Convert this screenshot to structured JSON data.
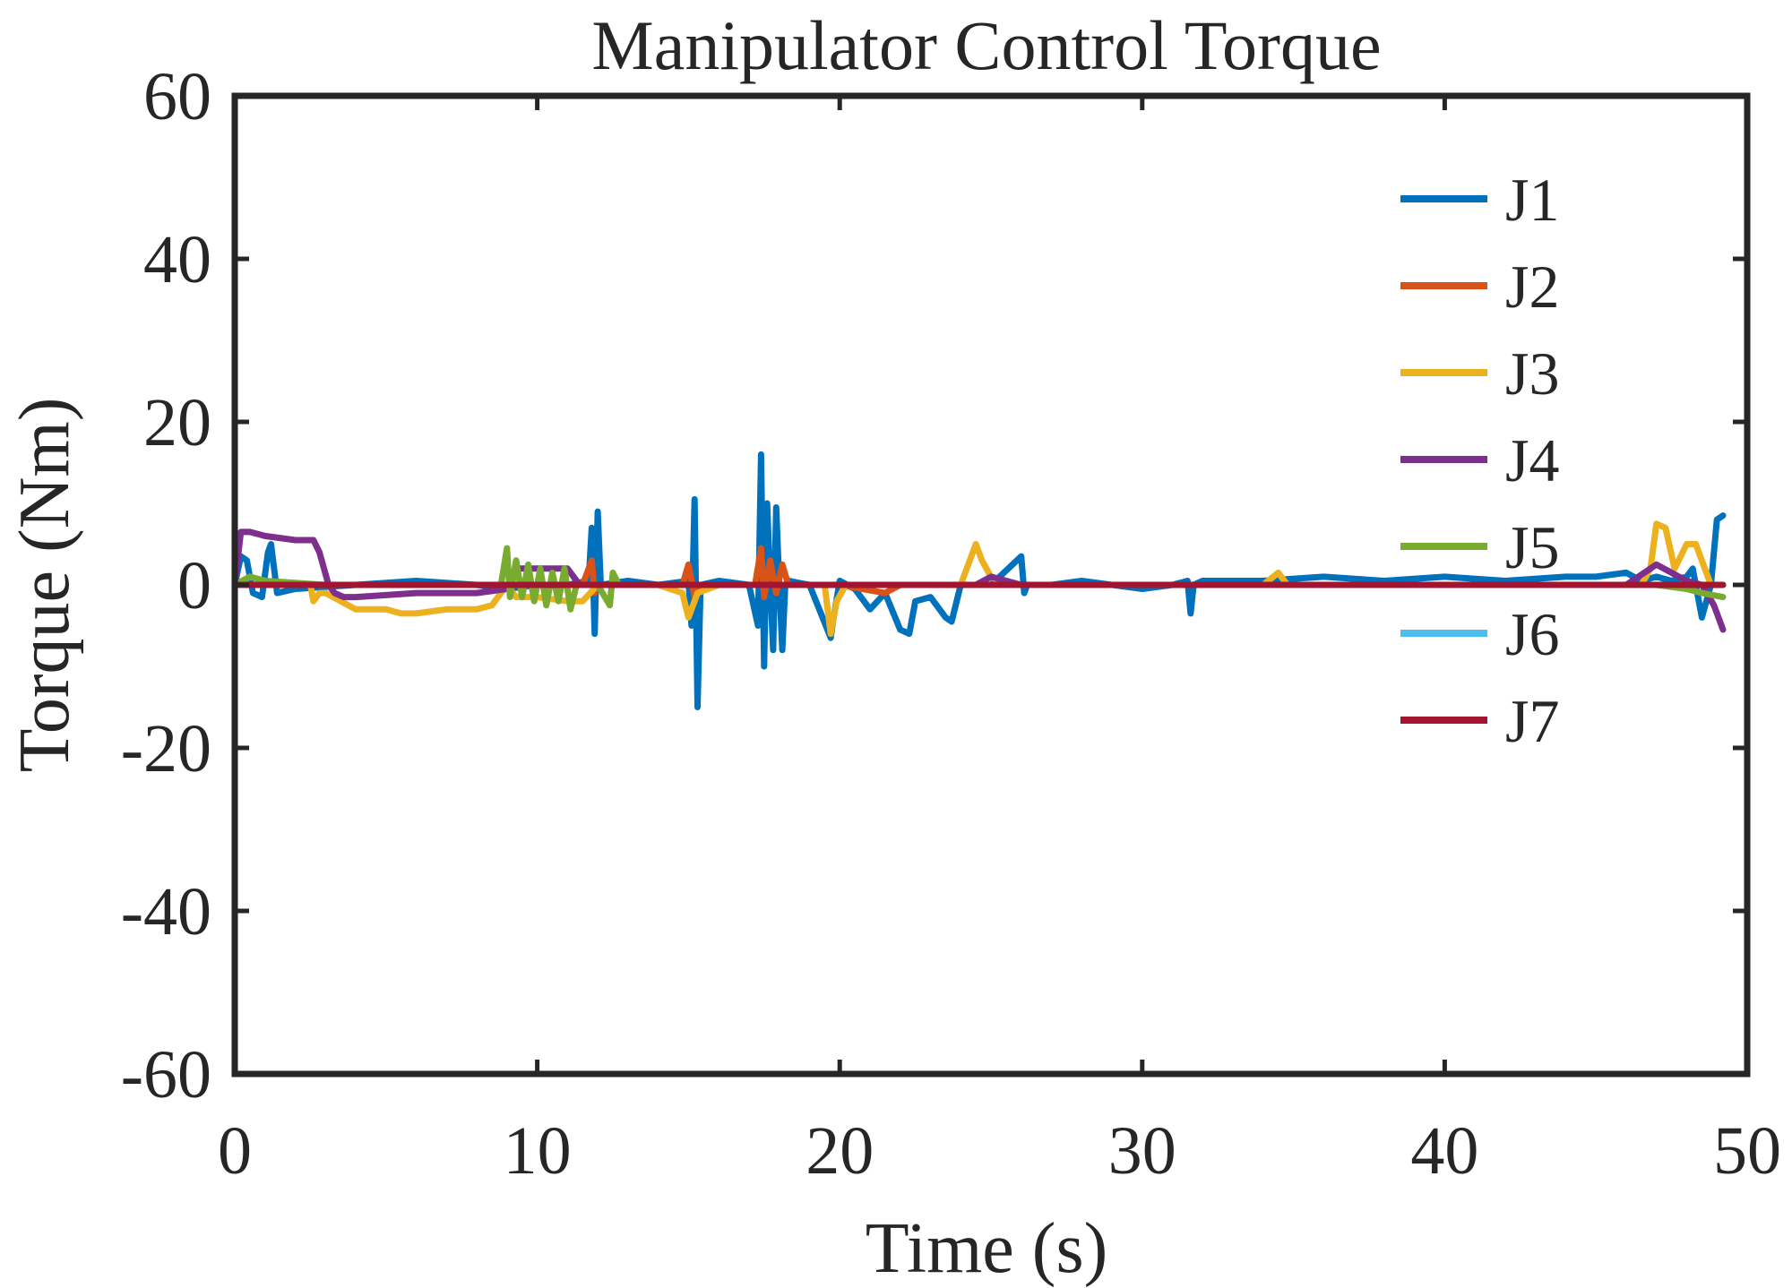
{
  "chart_data": {
    "type": "line",
    "title": "Manipulator Control Torque",
    "xlabel": "Time (s)",
    "ylabel": "Torque (Nm)",
    "xlim": [
      0,
      50
    ],
    "ylim": [
      -60,
      60
    ],
    "xticks": [
      0,
      10,
      20,
      30,
      40,
      50
    ],
    "yticks": [
      -60,
      -40,
      -20,
      0,
      20,
      40,
      60
    ],
    "xtick_labels": [
      "0",
      "10",
      "20",
      "30",
      "40",
      "50"
    ],
    "ytick_labels": [
      "-60",
      "-40",
      "-20",
      "0",
      "20",
      "40",
      "60"
    ],
    "grid": false,
    "legend_position": "top-right",
    "series": [
      {
        "name": "J1",
        "color": "#0072BD",
        "x": [
          0,
          0.2,
          0.4,
          0.6,
          0.9,
          1.1,
          1.2,
          1.4,
          2,
          4,
          6,
          8,
          9,
          10,
          11,
          11.7,
          11.8,
          11.9,
          12.0,
          12.1,
          13,
          14,
          15.0,
          15.1,
          15.2,
          15.3,
          15.4,
          16,
          17,
          17.3,
          17.4,
          17.5,
          17.6,
          17.7,
          17.8,
          17.9,
          18.0,
          18.1,
          18.2,
          18.3,
          19,
          19.7,
          19.8,
          20,
          20.5,
          21,
          21.5,
          22,
          22.3,
          22.5,
          23,
          23.5,
          23.7,
          24,
          25,
          26,
          26.1,
          26.2,
          27,
          28,
          30,
          31,
          31.5,
          31.6,
          31.7,
          32,
          34,
          36,
          38,
          40,
          42,
          44,
          45,
          46,
          46.5,
          47,
          47.5,
          48,
          48.2,
          48.5,
          48.8,
          49.0,
          49.2
        ],
        "values": [
          0,
          3.5,
          3,
          -1,
          -1.5,
          4,
          5,
          -1,
          -0.5,
          0,
          0.5,
          0,
          -0.5,
          0,
          0,
          0.5,
          7,
          -6,
          9,
          0,
          0.5,
          0,
          0.5,
          -5,
          10.5,
          -15,
          0,
          0.5,
          0,
          -5,
          16,
          -10,
          10,
          0,
          -8,
          9.5,
          0,
          -8,
          0,
          0.5,
          0,
          -6.5,
          -4,
          0.5,
          -0.5,
          -3,
          -1,
          -5.5,
          -6,
          -2,
          -1.5,
          -4,
          -4.5,
          0,
          0,
          3.5,
          -1,
          0,
          0,
          0.5,
          -0.5,
          0,
          0.5,
          -3.5,
          0,
          0.5,
          0.5,
          1,
          0.5,
          1,
          0.5,
          1,
          1,
          1.5,
          0.5,
          1,
          0.5,
          1,
          2,
          -4,
          0,
          8,
          8.5
        ]
      },
      {
        "name": "J2",
        "color": "#D95319",
        "x": [
          0,
          5,
          10,
          11.5,
          11.8,
          11.9,
          12.0,
          13,
          14.8,
          15.0,
          15.2,
          15.4,
          17.2,
          17.4,
          17.5,
          17.7,
          17.9,
          18.1,
          18.3,
          20,
          21.5,
          22,
          25,
          30,
          40,
          48,
          49.2
        ],
        "values": [
          0,
          0,
          0,
          0,
          3,
          -1,
          0,
          0,
          0,
          2.5,
          -1.5,
          0,
          0,
          4.5,
          -1.5,
          3,
          -1,
          2.5,
          0,
          0,
          -1,
          0,
          0,
          0,
          0,
          0,
          0
        ]
      },
      {
        "name": "J3",
        "color": "#EDB120",
        "x": [
          0,
          0.5,
          1,
          2,
          2.5,
          2.6,
          2.8,
          3,
          3.5,
          4,
          5,
          5.5,
          6,
          7,
          8,
          8.5,
          9,
          9.3,
          10,
          11,
          11.5,
          12,
          14,
          14.8,
          15.0,
          15.3,
          16,
          18,
          19.5,
          19.7,
          19.9,
          20.2,
          22,
          24,
          24.5,
          24.7,
          25,
          25.5,
          26,
          30,
          34,
          34.5,
          34.8,
          40,
          45,
          46.5,
          46.8,
          47.0,
          47.3,
          47.6,
          48.0,
          48.3,
          48.6,
          48.8,
          49.2
        ],
        "values": [
          0,
          1,
          0.5,
          0,
          0,
          -2,
          -1,
          -1,
          -2,
          -3,
          -3,
          -3.5,
          -3.5,
          -3,
          -3,
          -2.5,
          0,
          -1.5,
          -1.5,
          -2,
          -2,
          0,
          0,
          -1,
          -4,
          -1,
          0,
          0,
          0,
          -6,
          -2,
          0,
          0,
          0,
          5,
          3,
          1,
          0,
          0,
          0,
          0,
          1.5,
          0,
          0,
          0,
          0,
          2,
          7.5,
          7,
          2,
          5,
          5,
          2,
          0,
          0
        ]
      },
      {
        "name": "J4",
        "color": "#7E2F8E",
        "x": [
          0,
          0.2,
          0.5,
          1,
          2,
          2.6,
          2.8,
          3.1,
          3.3,
          3.6,
          4,
          6,
          8,
          9,
          9.3,
          10,
          10.5,
          11,
          11.4,
          12,
          20,
          24.5,
          25,
          26,
          30,
          40,
          46,
          47,
          47.5,
          48,
          48.5,
          48.9,
          49.2
        ],
        "values": [
          0,
          6.5,
          6.5,
          6,
          5.5,
          5.5,
          4,
          0,
          -1,
          -1.5,
          -1.5,
          -1,
          -1,
          -0.5,
          2,
          2,
          2,
          2,
          0,
          0,
          0,
          0,
          1,
          0,
          0,
          0,
          0,
          2.5,
          1.5,
          0.5,
          0,
          -2.5,
          -5.5
        ]
      },
      {
        "name": "J5",
        "color": "#77AC30",
        "x": [
          0,
          0.5,
          1,
          3,
          6,
          8.8,
          9.0,
          9.1,
          9.3,
          9.5,
          9.7,
          9.9,
          10.1,
          10.3,
          10.5,
          10.7,
          10.9,
          11.1,
          11.3,
          12,
          12.4,
          12.5,
          12.7,
          13,
          20,
          30,
          40,
          46,
          47,
          48,
          48.5,
          49.2
        ],
        "values": [
          0,
          1,
          0.5,
          0,
          0,
          0,
          4.5,
          -1.5,
          3,
          -1.5,
          2.5,
          -2,
          2,
          -2.5,
          1.5,
          -2,
          2,
          -3,
          0,
          0,
          -2.5,
          1.5,
          0,
          0,
          0,
          0,
          0,
          0,
          0,
          -0.5,
          -1,
          -1.5
        ]
      },
      {
        "name": "J6",
        "color": "#4DBEEE",
        "x": [
          0,
          10,
          20,
          30,
          40,
          49.2
        ],
        "values": [
          0,
          0,
          0,
          0,
          0,
          0
        ]
      },
      {
        "name": "J7",
        "color": "#A2142F",
        "x": [
          0,
          10,
          20,
          30,
          40,
          49.2
        ],
        "values": [
          0,
          0,
          0,
          0,
          0,
          0
        ]
      }
    ]
  }
}
